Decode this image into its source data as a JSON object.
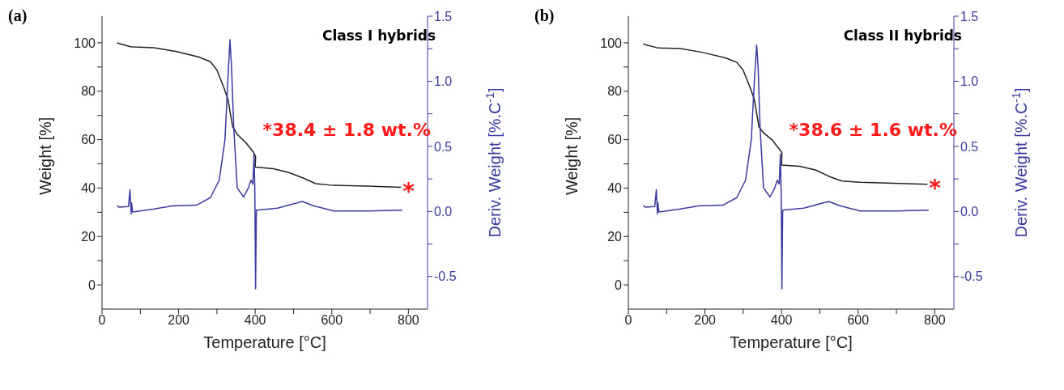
{
  "chart_data": [
    {
      "type": "line",
      "title": "(a)",
      "subtitle": "Class I hybrids",
      "xlabel": "Temperature [°C]",
      "ylabel": "Weight [%]",
      "y2label": "Deriv. Weight [%.C$^{-1}$]",
      "xlim": [
        0,
        850
      ],
      "xticks": [
        0,
        {
          "value": 100,
          "label": null
        },
        200,
        {
          "value": 300,
          "label": null
        },
        400,
        {
          "value": 500,
          "label": null
        },
        600,
        {
          "value": 700,
          "label": null
        },
        800
      ],
      "ylim": [
        -10,
        111
      ],
      "yticks": [
        0,
        {
          "value": 10,
          "label": null
        },
        20,
        {
          "value": 30,
          "label": null
        },
        40,
        {
          "value": 50,
          "label": null
        },
        60,
        {
          "value": 70,
          "label": null
        },
        80,
        {
          "value": 90,
          "label": null
        },
        100
      ],
      "y2lim": [
        -0.75,
        1.5
      ],
      "y2ticks": [
        {
          "value": -0.5,
          "label": "-0.5"
        },
        {
          "value": -0.25,
          "label": null
        },
        {
          "value": 0,
          "label": "0.0"
        },
        {
          "value": 0.25,
          "label": null
        },
        {
          "value": 0.5,
          "label": "0.5"
        },
        {
          "value": 0.75,
          "label": null
        },
        {
          "value": 1,
          "label": "1.0"
        },
        {
          "value": 1.25,
          "label": null
        },
        {
          "value": 1.5,
          "label": "1.5"
        }
      ],
      "grid": false,
      "legend": false,
      "marker": "none",
      "line_style": "solid",
      "annotations": [
        "*38.4 ± 1.8 wt.%",
        {
          "text": "*",
          "x": 781,
          "y": 40.3
        }
      ],
      "series": [
        {
          "color": "#222222",
          "x": [
            39,
            74,
            83,
            136,
            195,
            253,
            283,
            300,
            318,
            329,
            341,
            353,
            376,
            394,
            401,
            400,
            447,
            488,
            529,
            558,
            605,
            693,
            781
          ],
          "values": [
            100,
            98.4,
            98.3,
            98,
            96.4,
            94.1,
            92.2,
            88.8,
            81.6,
            76.5,
            65.3,
            62.2,
            58.7,
            55.1,
            53.1,
            48.7,
            48,
            46.4,
            43.9,
            41.8,
            41.1,
            40.8,
            40.3
          ]
        },
        {
          "color": "#3a3aa0",
          "axis": "y2",
          "x": [
            39,
            45,
            69,
            73,
            76,
            77,
            80,
            136,
            183,
            247,
            283,
            306,
            321,
            329,
            334,
            338,
            344,
            353,
            370,
            382,
            389,
            394,
            397,
            399,
            401,
            403,
            458,
            523,
            552,
            605,
            693,
            784
          ],
          "values": [
            0.044,
            0.033,
            0.038,
            0.167,
            -0.019,
            0.067,
            -0.004,
            0.019,
            0.042,
            0.048,
            0.106,
            0.24,
            0.55,
            1.03,
            1.32,
            1.12,
            0.64,
            0.18,
            0.111,
            0.18,
            0.24,
            0.21,
            0.44,
            0.16,
            -0.595,
            0.01,
            0.025,
            0.077,
            0.044,
            0.004,
            0.004,
            0.01
          ]
        }
      ]
    },
    {
      "type": "line",
      "title": "(b)",
      "subtitle": "Class II hybrids",
      "xlabel": "Temperature [°C]",
      "ylabel": "Weight [%]",
      "y2label": "Deriv. Weight [%.C$^{-1}$]",
      "xlim": [
        0,
        850
      ],
      "xticks": [
        0,
        {
          "value": 100,
          "label": null
        },
        200,
        {
          "value": 300,
          "label": null
        },
        400,
        {
          "value": 500,
          "label": null
        },
        600,
        {
          "value": 700,
          "label": null
        },
        800
      ],
      "ylim": [
        -10,
        111
      ],
      "yticks": [
        0,
        {
          "value": 10,
          "label": null
        },
        20,
        {
          "value": 30,
          "label": null
        },
        40,
        {
          "value": 50,
          "label": null
        },
        60,
        {
          "value": 70,
          "label": null
        },
        80,
        {
          "value": 90,
          "label": null
        },
        100
      ],
      "y2lim": [
        -0.75,
        1.5
      ],
      "y2ticks": [
        {
          "value": -0.5,
          "label": "-0.5"
        },
        {
          "value": -0.25,
          "label": null
        },
        {
          "value": 0,
          "label": "0.0"
        },
        {
          "value": 0.25,
          "label": null
        },
        {
          "value": 0.5,
          "label": "0.5"
        },
        {
          "value": 0.75,
          "label": null
        },
        {
          "value": 1,
          "label": "1.0"
        },
        {
          "value": 1.25,
          "label": null
        },
        {
          "value": 1.5,
          "label": "1.5"
        }
      ],
      "grid": false,
      "legend": false,
      "marker": "none",
      "line_style": "solid",
      "annotations": [
        "*38.6 ± 1.6 wt.%",
        {
          "text": "*",
          "x": 781,
          "y": 41.6
        }
      ],
      "series": [
        {
          "color": "#222222",
          "x": [
            39,
            74,
            83,
            136,
            195,
            253,
            283,
            300,
            318,
            329,
            341,
            353,
            376,
            394,
            401,
            400,
            447,
            488,
            529,
            558,
            605,
            693,
            781
          ],
          "values": [
            99.5,
            98,
            97.9,
            97.6,
            96,
            93.8,
            92,
            88.6,
            81.5,
            76.5,
            65.3,
            62.8,
            59.8,
            56.1,
            54.6,
            49.5,
            49,
            47.5,
            44.5,
            42.9,
            42.4,
            42,
            41.6
          ]
        },
        {
          "color": "#3a3aa0",
          "axis": "y2",
          "x": [
            39,
            45,
            69,
            73,
            76,
            77,
            80,
            136,
            183,
            247,
            283,
            306,
            321,
            329,
            335,
            339,
            344,
            353,
            370,
            382,
            389,
            394,
            397,
            399,
            401,
            403,
            458,
            523,
            552,
            605,
            693,
            784
          ],
          "values": [
            0.044,
            0.033,
            0.038,
            0.167,
            -0.019,
            0.067,
            -0.004,
            0.019,
            0.042,
            0.048,
            0.106,
            0.24,
            0.55,
            1.0,
            1.28,
            1.1,
            0.64,
            0.18,
            0.111,
            0.18,
            0.24,
            0.21,
            0.44,
            0.16,
            -0.595,
            0.01,
            0.025,
            0.077,
            0.044,
            0.004,
            0.004,
            0.01
          ]
        }
      ]
    }
  ]
}
